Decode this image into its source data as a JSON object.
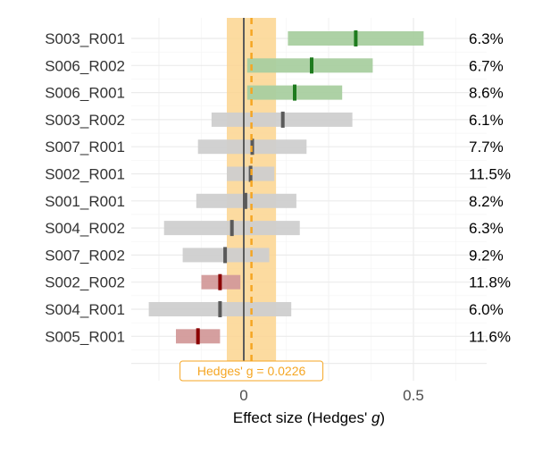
{
  "chart_data": {
    "type": "forest",
    "xlabel": "Effect size (Hedges' g)",
    "xlabel_plain": "Effect size (Hedges' ",
    "xlabel_italic": "g",
    "xlabel_close": ")",
    "xlim": [
      -0.32,
      0.72
    ],
    "x_ticks": [
      0,
      0.5
    ],
    "x_tick_labels": [
      "0",
      "0.5"
    ],
    "grid": true,
    "null_value": 0,
    "pooled": {
      "estimate": 0.0226,
      "ci": [
        -0.05,
        0.095
      ],
      "label": "Hedges' g = 0.0226",
      "color": "#f5a623",
      "band_color": "#fbd58f"
    },
    "colors": {
      "positive_sig": "#1e7b1e",
      "negative_sig": "#8b0000",
      "non_sig": "#5a5a5a",
      "positive_bar": "#a9cfa0",
      "negative_bar": "#d39a9a",
      "non_sig_bar": "#cfcfcf"
    },
    "studies": [
      {
        "label": "S003_R001",
        "estimate": 0.33,
        "lower": 0.13,
        "upper": 0.53,
        "weight": "6.3%",
        "status": "positive"
      },
      {
        "label": "S006_R002",
        "estimate": 0.2,
        "lower": 0.01,
        "upper": 0.38,
        "weight": "6.7%",
        "status": "positive"
      },
      {
        "label": "S006_R001",
        "estimate": 0.15,
        "lower": 0.01,
        "upper": 0.29,
        "weight": "8.6%",
        "status": "positive"
      },
      {
        "label": "S003_R002",
        "estimate": 0.115,
        "lower": -0.095,
        "upper": 0.32,
        "weight": "6.1%",
        "status": "none"
      },
      {
        "label": "S007_R001",
        "estimate": 0.025,
        "lower": -0.135,
        "upper": 0.185,
        "weight": "7.7%",
        "status": "none"
      },
      {
        "label": "S002_R001",
        "estimate": 0.02,
        "lower": -0.05,
        "upper": 0.09,
        "weight": "11.5%",
        "status": "none"
      },
      {
        "label": "S001_R001",
        "estimate": 0.005,
        "lower": -0.14,
        "upper": 0.155,
        "weight": "8.2%",
        "status": "none"
      },
      {
        "label": "S004_R002",
        "estimate": -0.035,
        "lower": -0.235,
        "upper": 0.165,
        "weight": "6.3%",
        "status": "none"
      },
      {
        "label": "S007_R002",
        "estimate": -0.055,
        "lower": -0.18,
        "upper": 0.075,
        "weight": "9.2%",
        "status": "none"
      },
      {
        "label": "S002_R002",
        "estimate": -0.07,
        "lower": -0.125,
        "upper": -0.01,
        "weight": "11.8%",
        "status": "negative"
      },
      {
        "label": "S004_R001",
        "estimate": -0.07,
        "lower": -0.28,
        "upper": 0.14,
        "weight": "6.0%",
        "status": "none"
      },
      {
        "label": "S005_R001",
        "estimate": -0.135,
        "lower": -0.2,
        "upper": -0.07,
        "weight": "11.6%",
        "status": "negative"
      }
    ]
  }
}
